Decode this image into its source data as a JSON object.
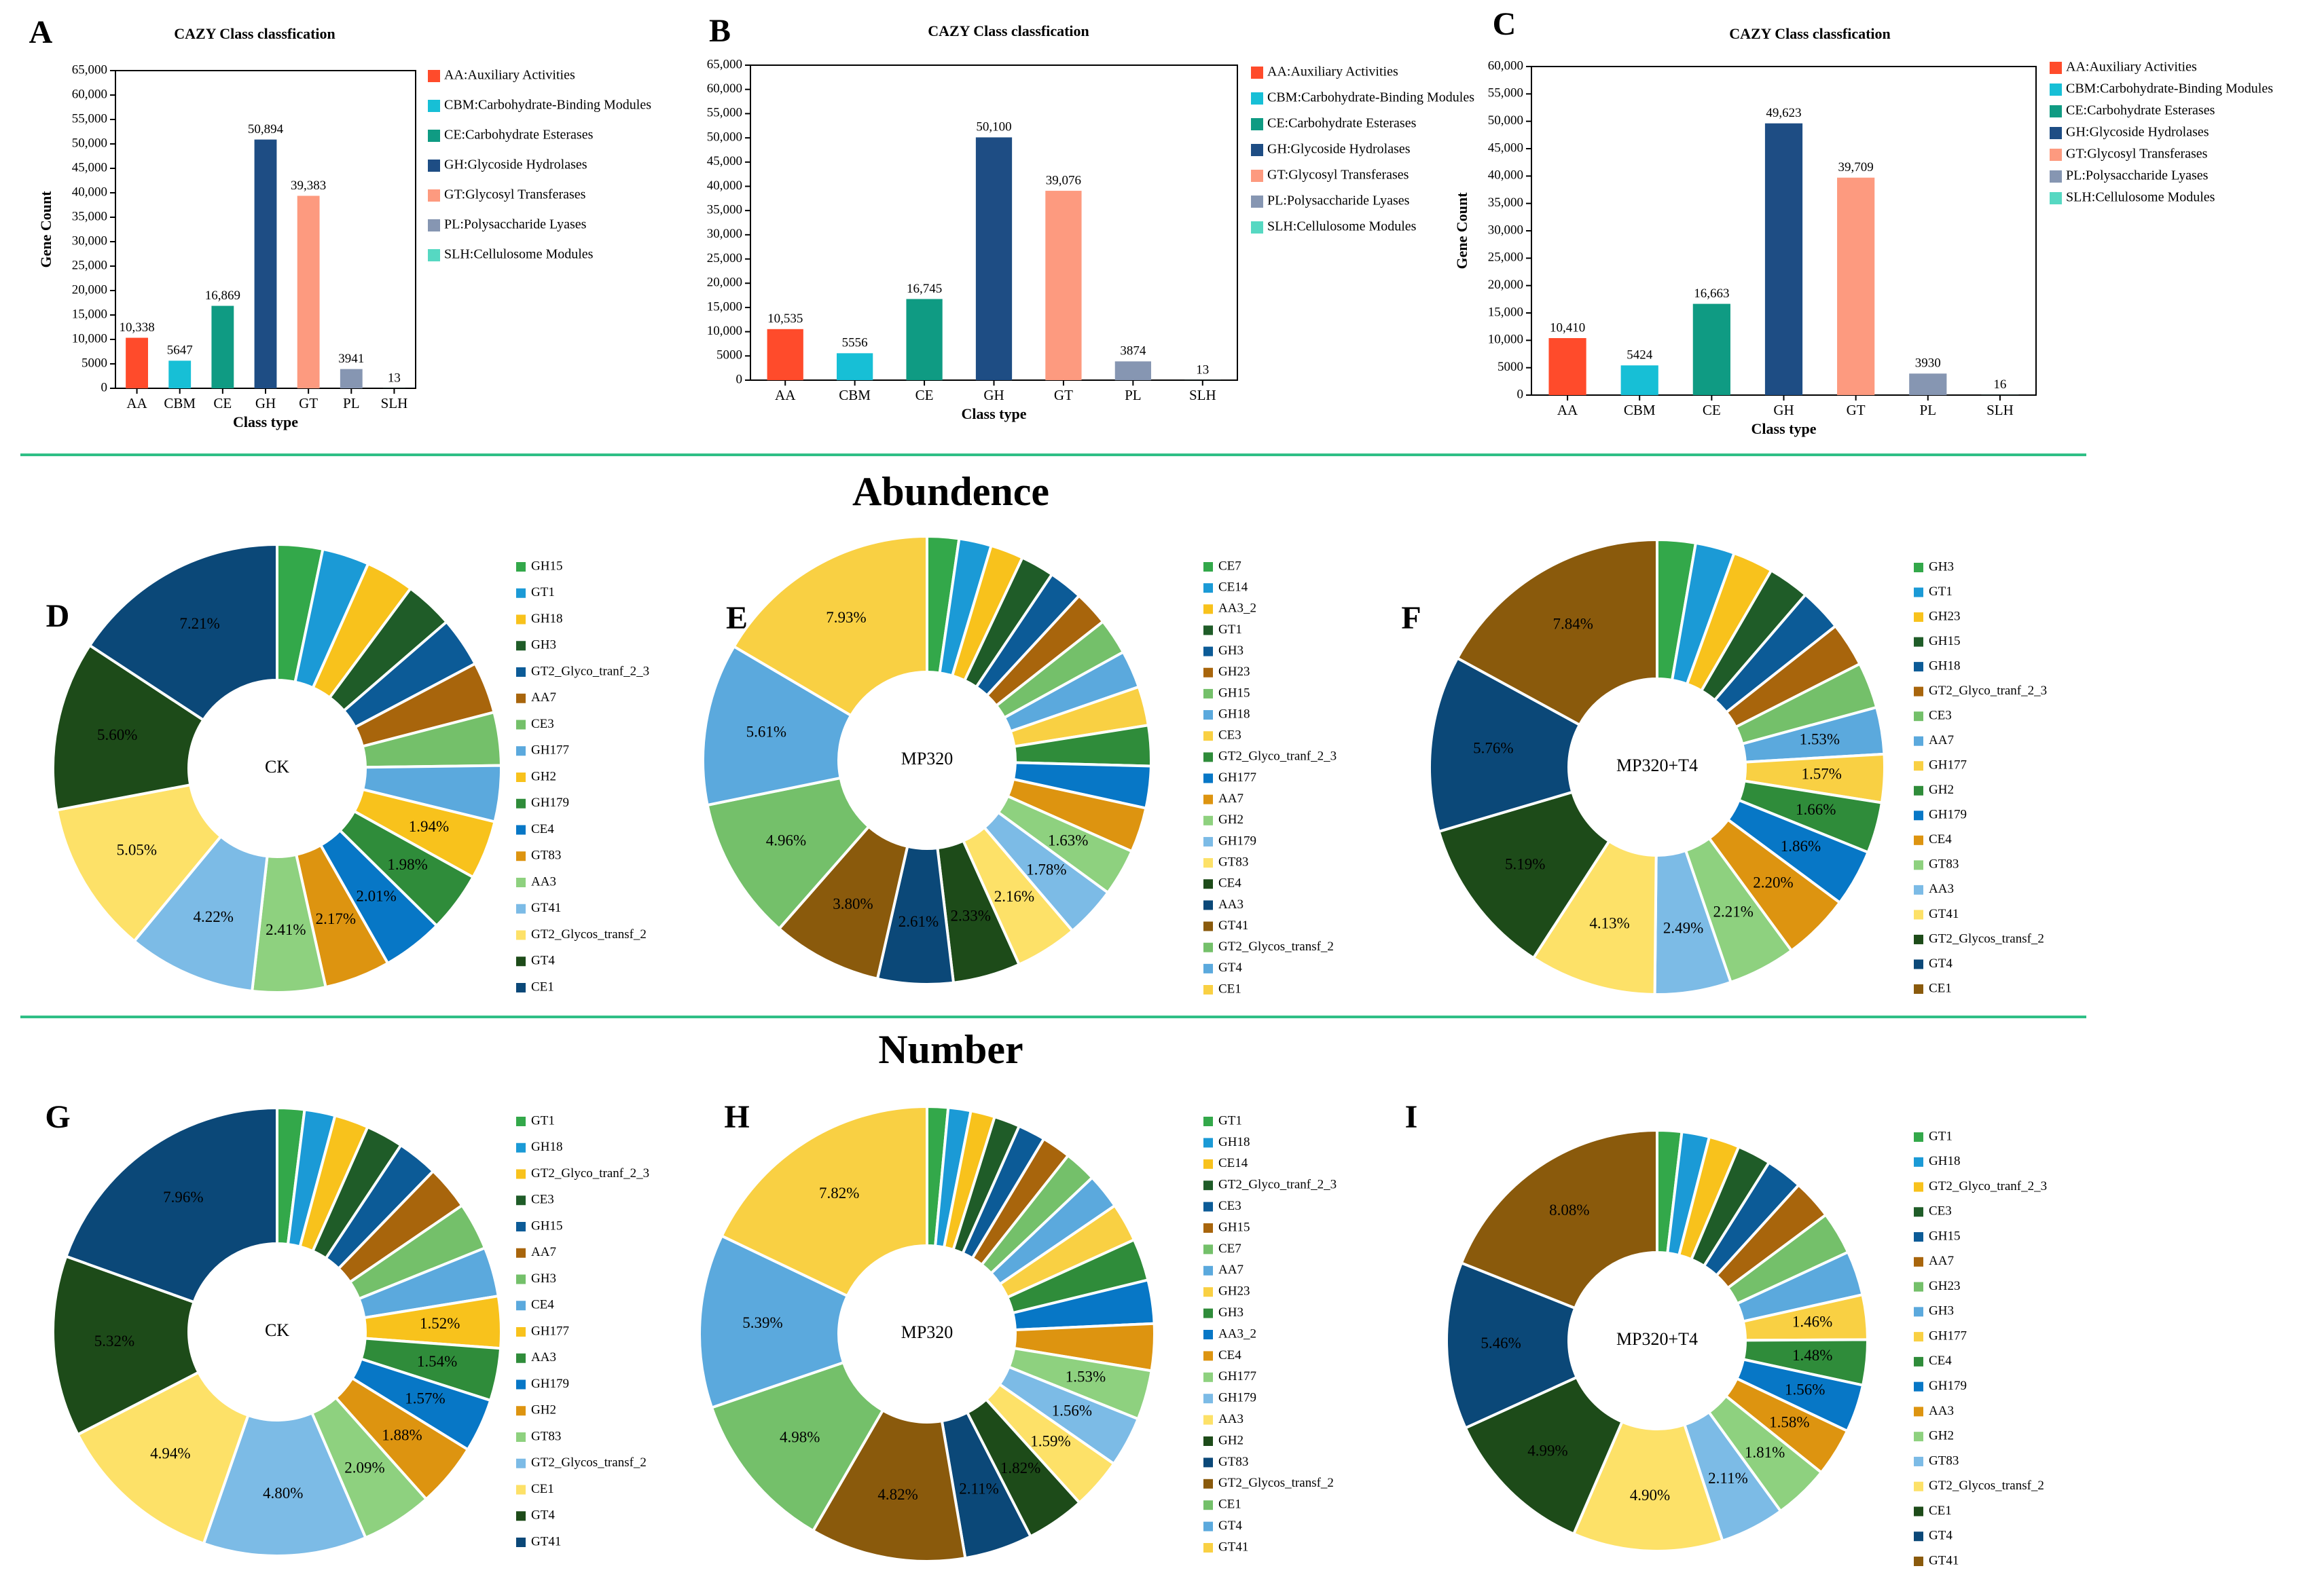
{
  "section_titles": {
    "abundance": "Abundence",
    "number": "Number"
  },
  "colors": {
    "AA": "#ff4b2b",
    "CBM": "#17bfd6",
    "CE": "#0f9b83",
    "GH": "#1e4d84",
    "GT": "#fd9a7f",
    "PL": "#8696b2",
    "SLH": "#56d8c2",
    "separator": "#2fbf86"
  },
  "pie_palette": [
    "#33a84a",
    "#1b9ad6",
    "#f8c21c",
    "#1f5c28",
    "#0c5b97",
    "#a8650c",
    "#74c06a",
    "#5ba9dd",
    "#f9d043",
    "#2f8c3a",
    "#0777c6",
    "#dd9410",
    "#8ed17f",
    "#7cbbe6",
    "#fde168",
    "#1d4b19",
    "#0b4878",
    "#8a5a0c"
  ],
  "chart_data": [
    {
      "panel": "A",
      "type": "bar",
      "title": "CAZY Class classfication",
      "xlabel": "Class type",
      "ylabel": "Gene Count",
      "categories": [
        "AA",
        "CBM",
        "CE",
        "GH",
        "GT",
        "PL",
        "SLH"
      ],
      "values": [
        10338,
        5647,
        16869,
        50894,
        39383,
        3941,
        13
      ],
      "value_labels": [
        "10,338",
        "5647",
        "16,869",
        "50,894",
        "39,383",
        "3941",
        "13"
      ],
      "ylim": [
        0,
        65000
      ],
      "yticks": [
        "0",
        "5000",
        "10,000",
        "15,000",
        "20,000",
        "25,000",
        "30,000",
        "35,000",
        "40,000",
        "45,000",
        "50,000",
        "55,000",
        "60,000",
        "65,000"
      ],
      "legend": [
        "AA:Auxiliary Activities",
        "CBM:Carbohydrate-Binding Modules",
        "CE:Carbohydrate Esterases",
        "GH:Glycoside Hydrolases",
        "GT:Glycosyl Transferases",
        "PL:Polysaccharide Lyases",
        "SLH:Cellulosome Modules"
      ]
    },
    {
      "panel": "B",
      "type": "bar",
      "title": "CAZY Class classfication",
      "xlabel": "Class type",
      "ylabel": "",
      "categories": [
        "AA",
        "CBM",
        "CE",
        "GH",
        "GT",
        "PL",
        "SLH"
      ],
      "values": [
        10535,
        5556,
        16745,
        50100,
        39076,
        3874,
        13
      ],
      "value_labels": [
        "10,535",
        "5556",
        "16,745",
        "50,100",
        "39,076",
        "3874",
        "13"
      ],
      "ylim": [
        0,
        65000
      ],
      "yticks": [
        "0",
        "5000",
        "10,000",
        "15,000",
        "20,000",
        "25,000",
        "30,000",
        "35,000",
        "40,000",
        "45,000",
        "50,000",
        "55,000",
        "60,000",
        "65,000"
      ],
      "legend": [
        "AA:Auxiliary Activities",
        "CBM:Carbohydrate-Binding Modules",
        "CE:Carbohydrate Esterases",
        "GH:Glycoside Hydrolases",
        "GT:Glycosyl Transferases",
        "PL:Polysaccharide Lyases",
        "SLH:Cellulosome Modules"
      ]
    },
    {
      "panel": "C",
      "type": "bar",
      "title": "CAZY Class classfication",
      "xlabel": "Class type",
      "ylabel": "Gene Count",
      "categories": [
        "AA",
        "CBM",
        "CE",
        "GH",
        "GT",
        "PL",
        "SLH"
      ],
      "values": [
        10410,
        5424,
        16663,
        49623,
        39709,
        3930,
        16
      ],
      "value_labels": [
        "10,410",
        "5424",
        "16,663",
        "49,623",
        "39,709",
        "3930",
        "16"
      ],
      "ylim": [
        0,
        60000
      ],
      "yticks": [
        "0",
        "5000",
        "10,000",
        "15,000",
        "20,000",
        "25,000",
        "30,000",
        "35,000",
        "40,000",
        "45,000",
        "50,000",
        "55,000",
        "60,000"
      ],
      "legend": [
        "AA:Auxiliary Activities",
        "CBM:Carbohydrate-Binding Modules",
        "CE:Carbohydrate Esterases",
        "GH:Glycoside Hydrolases",
        "GT:Glycosyl Transferases",
        "PL:Polysaccharide Lyases",
        "SLH:Cellulosome Modules"
      ]
    },
    {
      "panel": "D",
      "type": "pie",
      "center_label": "CK",
      "legend": [
        "GH15",
        "GT1",
        "GH18",
        "GH3",
        "GT2_Glyco_tranf_2_3",
        "AA7",
        "CE3",
        "GH177",
        "GH2",
        "GH179",
        "CE4",
        "GT83",
        "AA3",
        "GT41",
        "GT2_Glycos_transf_2",
        "GT4",
        "CE1"
      ],
      "values": [
        1.5,
        1.55,
        1.6,
        1.6,
        1.65,
        1.7,
        1.75,
        1.85,
        1.94,
        1.98,
        2.01,
        2.17,
        2.41,
        4.22,
        5.05,
        5.6,
        7.21
      ],
      "labels": [
        "",
        "",
        "",
        "",
        "",
        "",
        "",
        "",
        "1.94%",
        "1.98%",
        "2.01%",
        "2.17%",
        "2.41%",
        "4.22%",
        "5.05%",
        "5.60%",
        "7.21%"
      ],
      "color_index": [
        0,
        1,
        2,
        3,
        4,
        5,
        6,
        7,
        2,
        9,
        10,
        11,
        12,
        13,
        14,
        15,
        16
      ]
    },
    {
      "panel": "E",
      "type": "pie",
      "center_label": "MP320",
      "legend": [
        "CE7",
        "CE14",
        "AA3_2",
        "GT1",
        "GH3",
        "GH23",
        "GH15",
        "GH18",
        "CE3",
        "GT2_Glyco_tranf_2_3",
        "GH177",
        "AA7",
        "GH2",
        "GH179",
        "GT83",
        "CE4",
        "AA3",
        "GT41",
        "GT2_Glycos_transf_2",
        "GT4",
        "CE1"
      ],
      "values": [
        1.1,
        1.12,
        1.14,
        1.16,
        1.18,
        1.2,
        1.25,
        1.3,
        1.35,
        1.4,
        1.45,
        1.55,
        1.63,
        1.78,
        2.16,
        2.33,
        2.61,
        3.8,
        4.96,
        5.61,
        7.93
      ],
      "labels": [
        "",
        "",
        "",
        "",
        "",
        "",
        "",
        "",
        "",
        "",
        "",
        "",
        "1.63%",
        "1.78%",
        "2.16%",
        "2.33%",
        "2.61%",
        "3.80%",
        "4.96%",
        "5.61%",
        "7.93%"
      ],
      "color_index": [
        0,
        1,
        2,
        3,
        4,
        5,
        6,
        7,
        8,
        9,
        10,
        11,
        12,
        13,
        14,
        15,
        16,
        17,
        6,
        7,
        8
      ]
    },
    {
      "panel": "F",
      "type": "pie",
      "center_label": "MP320+T4",
      "legend": [
        "GH3",
        "GT1",
        "GH23",
        "GH15",
        "GH18",
        "GT2_Glyco_tranf_2_3",
        "CE3",
        "AA7",
        "GH177",
        "GH2",
        "GH179",
        "CE4",
        "GT83",
        "AA3",
        "GT41",
        "GT2_Glycos_transf_2",
        "GT4",
        "CE1"
      ],
      "values": [
        1.25,
        1.28,
        1.32,
        1.35,
        1.4,
        1.45,
        1.5,
        1.53,
        1.57,
        1.66,
        1.86,
        2.2,
        2.21,
        2.49,
        4.13,
        5.19,
        5.76,
        7.84
      ],
      "labels": [
        "",
        "",
        "",
        "",
        "",
        "",
        "",
        "1.53%",
        "1.57%",
        "1.66%",
        "1.86%",
        "2.20%",
        "2.21%",
        "2.49%",
        "4.13%",
        "5.19%",
        "5.76%",
        "7.84%"
      ],
      "color_index": [
        0,
        1,
        2,
        3,
        4,
        5,
        6,
        7,
        8,
        9,
        10,
        11,
        12,
        13,
        14,
        15,
        16,
        17
      ]
    },
    {
      "panel": "G",
      "type": "pie",
      "center_label": "CK",
      "legend": [
        "GT1",
        "GH18",
        "GT2_Glyco_tranf_2_3",
        "CE3",
        "GH15",
        "AA7",
        "GH3",
        "CE4",
        "GH177",
        "AA3",
        "GH179",
        "GH2",
        "GT83",
        "GT2_Glycos_transf_2",
        "CE1",
        "GT4",
        "GT41"
      ],
      "values": [
        0.8,
        0.9,
        1.0,
        1.1,
        1.2,
        1.3,
        1.4,
        1.45,
        1.52,
        1.54,
        1.57,
        1.88,
        2.09,
        4.8,
        4.94,
        5.32,
        7.96
      ],
      "labels": [
        "",
        "",
        "",
        "",
        "",
        "",
        "",
        "",
        "1.52%",
        "1.54%",
        "1.57%",
        "1.88%",
        "2.09%",
        "4.80%",
        "4.94%",
        "5.32%",
        "7.96%"
      ],
      "color_index": [
        0,
        1,
        2,
        3,
        4,
        5,
        6,
        7,
        2,
        9,
        10,
        11,
        12,
        13,
        14,
        15,
        16
      ]
    },
    {
      "panel": "H",
      "type": "pie",
      "center_label": "MP320",
      "legend": [
        "GT1",
        "GH18",
        "CE14",
        "GT2_Glyco_tranf_2_3",
        "CE3",
        "GH15",
        "CE7",
        "AA7",
        "GH23",
        "GH3",
        "AA3_2",
        "CE4",
        "GH177",
        "GH179",
        "AA3",
        "GH2",
        "GT83",
        "GT2_Glycos_transf_2",
        "CE1",
        "GT4",
        "GT41"
      ],
      "values": [
        0.65,
        0.7,
        0.75,
        0.8,
        0.85,
        0.9,
        1.0,
        1.1,
        1.2,
        1.3,
        1.35,
        1.45,
        1.53,
        1.56,
        1.59,
        1.82,
        2.11,
        4.82,
        4.98,
        5.39,
        7.82
      ],
      "labels": [
        "",
        "",
        "",
        "",
        "",
        "",
        "",
        "",
        "",
        "",
        "",
        "",
        "1.53%",
        "1.56%",
        "1.59%",
        "1.82%",
        "2.11%",
        "4.82%",
        "4.98%",
        "5.39%",
        "7.82%"
      ],
      "color_index": [
        0,
        1,
        2,
        3,
        4,
        5,
        6,
        7,
        8,
        9,
        10,
        11,
        12,
        13,
        14,
        15,
        16,
        17,
        6,
        7,
        8
      ]
    },
    {
      "panel": "I",
      "type": "pie",
      "center_label": "MP320+T4",
      "legend": [
        "GT1",
        "GH18",
        "GT2_Glyco_tranf_2_3",
        "CE3",
        "GH15",
        "AA7",
        "GH23",
        "GH3",
        "GH177",
        "CE4",
        "GH179",
        "AA3",
        "GH2",
        "GT83",
        "GT2_Glycos_transf_2",
        "CE1",
        "GT4",
        "GT41"
      ],
      "values": [
        0.8,
        0.9,
        1.0,
        1.1,
        1.2,
        1.3,
        1.4,
        1.45,
        1.46,
        1.48,
        1.56,
        1.58,
        1.81,
        2.11,
        4.9,
        4.99,
        5.46,
        8.08
      ],
      "labels": [
        "",
        "",
        "",
        "",
        "",
        "",
        "",
        "",
        "1.46%",
        "1.48%",
        "1.56%",
        "1.58%",
        "1.81%",
        "2.11%",
        "4.90%",
        "4.99%",
        "5.46%",
        "8.08%"
      ],
      "color_index": [
        0,
        1,
        2,
        3,
        4,
        5,
        6,
        7,
        8,
        9,
        10,
        11,
        12,
        13,
        14,
        15,
        16,
        17
      ]
    }
  ]
}
